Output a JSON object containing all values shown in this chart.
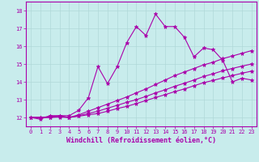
{
  "xlabel": "Windchill (Refroidissement éolien,°C)",
  "ylabel": "",
  "background_color": "#c8ecec",
  "grid_color": "#b0d8d8",
  "line_color": "#aa00aa",
  "xlim": [
    -0.5,
    23.5
  ],
  "ylim": [
    11.5,
    18.5
  ],
  "yticks": [
    12,
    13,
    14,
    15,
    16,
    17,
    18
  ],
  "xticks": [
    0,
    1,
    2,
    3,
    4,
    5,
    6,
    7,
    8,
    9,
    10,
    11,
    12,
    13,
    14,
    15,
    16,
    17,
    18,
    19,
    20,
    21,
    22,
    23
  ],
  "series": [
    [
      12.0,
      11.9,
      12.1,
      12.1,
      12.1,
      12.4,
      13.1,
      14.85,
      13.9,
      14.85,
      16.2,
      17.1,
      16.6,
      17.8,
      17.1,
      17.1,
      16.5,
      15.4,
      15.9,
      15.8,
      15.2,
      14.0,
      14.2,
      14.1
    ],
    [
      12.0,
      12.0,
      12.05,
      12.1,
      12.0,
      12.15,
      12.35,
      12.55,
      12.75,
      12.95,
      13.15,
      13.38,
      13.6,
      13.85,
      14.1,
      14.35,
      14.55,
      14.75,
      14.95,
      15.1,
      15.3,
      15.45,
      15.6,
      15.75
    ],
    [
      12.0,
      12.0,
      12.0,
      12.05,
      12.0,
      12.1,
      12.22,
      12.35,
      12.52,
      12.68,
      12.85,
      13.0,
      13.18,
      13.38,
      13.55,
      13.75,
      13.92,
      14.1,
      14.3,
      14.45,
      14.62,
      14.75,
      14.88,
      15.0
    ],
    [
      12.0,
      12.0,
      12.0,
      12.02,
      12.0,
      12.07,
      12.15,
      12.22,
      12.35,
      12.5,
      12.62,
      12.78,
      12.95,
      13.12,
      13.28,
      13.45,
      13.6,
      13.78,
      13.95,
      14.08,
      14.22,
      14.35,
      14.48,
      14.6
    ]
  ],
  "marker": "*",
  "markersize": 3.5,
  "linewidth": 0.8,
  "tick_fontsize": 5,
  "xlabel_fontsize": 6,
  "figwidth": 3.2,
  "figheight": 2.0,
  "dpi": 100
}
